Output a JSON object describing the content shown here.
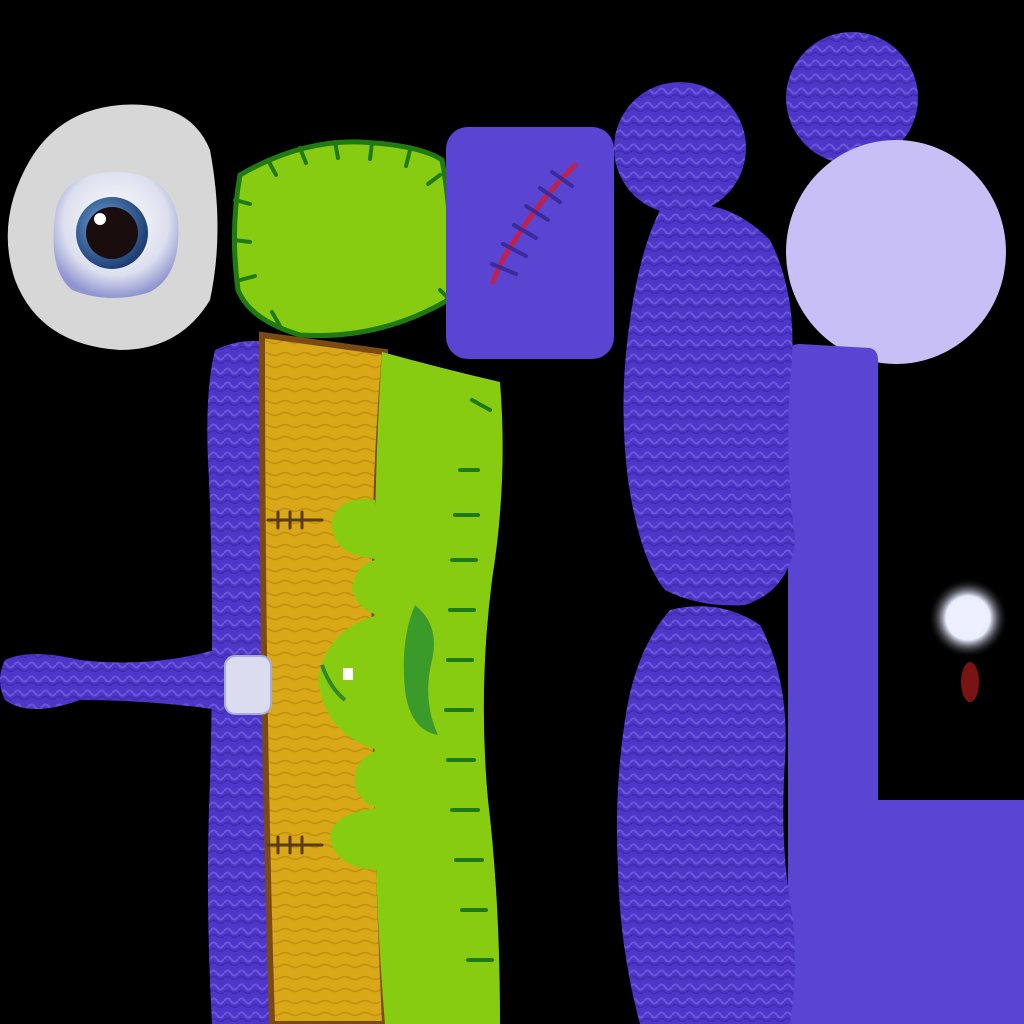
{
  "texture_atlas": {
    "background_color": "#000000",
    "colors": {
      "eye_white": "#d7d7d7",
      "eye_socket": "#c5c9e6",
      "iris": "#2b5a9a",
      "pupil": "#1a0d0d",
      "head_green": "#88cc11",
      "stitch_green": "#1f7a12",
      "patch_purple": "#5a45d2",
      "scar_red": "#c0204a",
      "yarn_purple": "#4e36c8",
      "yarn_highlight": "#6a55dc",
      "light_lavender": "#c7bff5",
      "body_orange": "#d8a818",
      "body_brown": "#7a4a12",
      "button_white": "#dcdcf0",
      "tooth_white": "#eef0ff",
      "blood_red": "#7a1414"
    },
    "pieces": [
      {
        "name": "eyeball",
        "icon": "eyeball-icon"
      },
      {
        "name": "green-head-patch",
        "icon": "stitched-patch-icon"
      },
      {
        "name": "scar-patch",
        "icon": "scar-icon"
      },
      {
        "name": "yarn-ball-small",
        "icon": "yarn-ball-icon"
      },
      {
        "name": "yarn-ball-top-right",
        "icon": "yarn-ball-icon"
      },
      {
        "name": "lavender-disc",
        "icon": "disc-icon"
      },
      {
        "name": "body-strip",
        "icon": "body-icon"
      },
      {
        "name": "yarn-arm",
        "icon": "arm-icon"
      },
      {
        "name": "purple-l-shape",
        "icon": "l-shape-icon"
      },
      {
        "name": "glowing-tooth",
        "icon": "tooth-icon"
      }
    ]
  }
}
